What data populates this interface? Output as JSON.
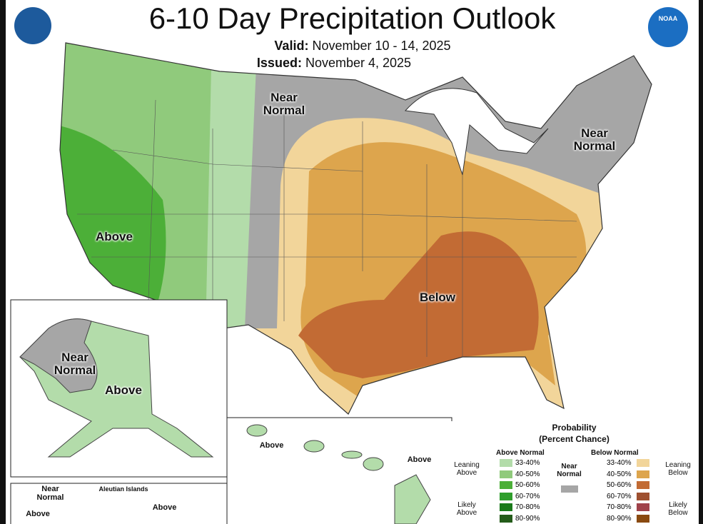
{
  "header": {
    "title": "6-10 Day Precipitation Outlook",
    "valid_label": "Valid:",
    "valid": "November 10 - 14, 2025",
    "issued_label": "Issued:",
    "issued": "November 4, 2025",
    "logo": "NOAA"
  },
  "map_labels": {
    "conus_near_normal_west": "Near Normal",
    "conus_near_normal_east": "Near Normal",
    "conus_above": "Above",
    "conus_below": "Below",
    "alaska_near_normal": "Near Normal",
    "alaska_above": "Above",
    "aleutian_near_normal": "Near Normal",
    "aleutian_above_west": "Above",
    "aleutian_title": "Aleutian Islands",
    "aleutian_above_east": "Above",
    "hawaii_above_west": "Above",
    "hawaii_above_east": "Above"
  },
  "legend": {
    "title": "Probability",
    "subtitle": "(Percent Chance)",
    "above_heading": "Above Normal",
    "below_heading": "Below Normal",
    "near_label": "Near Normal",
    "near_color": "#a6a6a6",
    "leaning_above": "Leaning Above",
    "likely_above": "Likely Above",
    "leaning_below": "Leaning Below",
    "likely_below": "Likely Below",
    "above": [
      {
        "range": "33-40%",
        "color": "#b3dcaa"
      },
      {
        "range": "40-50%",
        "color": "#90ca7c"
      },
      {
        "range": "50-60%",
        "color": "#4caf38"
      },
      {
        "range": "60-70%",
        "color": "#2f9e2c"
      },
      {
        "range": "70-80%",
        "color": "#1a7a1a"
      },
      {
        "range": "80-90%",
        "color": "#245c1a"
      }
    ],
    "below": [
      {
        "range": "33-40%",
        "color": "#f2d59a"
      },
      {
        "range": "40-50%",
        "color": "#dda54d"
      },
      {
        "range": "50-60%",
        "color": "#c26b34"
      },
      {
        "range": "60-70%",
        "color": "#9e5030"
      },
      {
        "range": "70-80%",
        "color": "#a0424a"
      },
      {
        "range": "80-90%",
        "color": "#8a4a10"
      }
    ]
  }
}
